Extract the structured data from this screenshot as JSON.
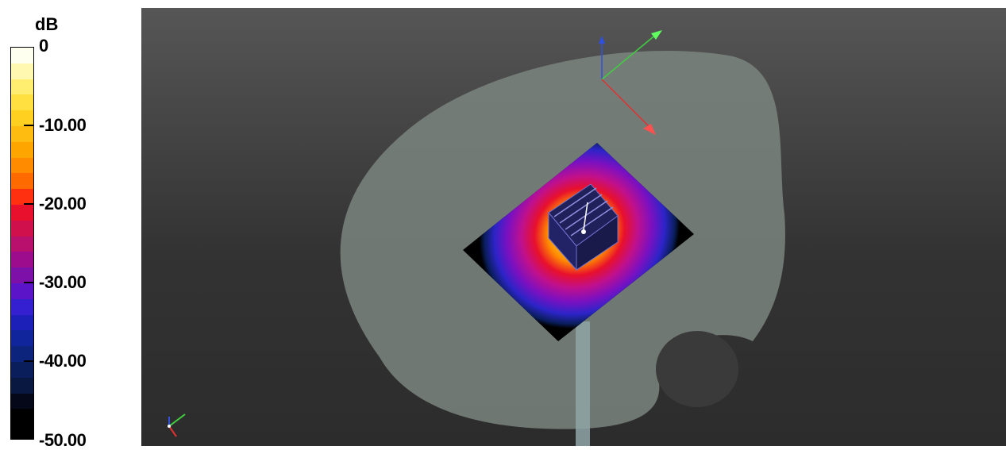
{
  "colorbar": {
    "unit": "dB",
    "ticks": [
      {
        "label": "0",
        "value": 0
      },
      {
        "label": "-10.00",
        "value": -10
      },
      {
        "label": "-20.00",
        "value": -20
      },
      {
        "label": "-30.00",
        "value": -30
      },
      {
        "label": "-40.00",
        "value": -40
      },
      {
        "label": "-50.00",
        "value": -50
      }
    ],
    "range": [
      -50,
      0
    ],
    "colors": [
      "#fffff0",
      "#fff8b0",
      "#ffee70",
      "#ffe040",
      "#ffd020",
      "#ffbc10",
      "#ffa500",
      "#ff8c00",
      "#ff6a00",
      "#ff3010",
      "#e8102c",
      "#d0104c",
      "#b8106c",
      "#9c0c8c",
      "#7c10a8",
      "#5c14c8",
      "#3420d0",
      "#1c20b8",
      "#10249c",
      "#0c247c",
      "#0a1e5c",
      "#081840",
      "#040818",
      "#000000",
      "#000000"
    ]
  },
  "viewport": {
    "background_top": "#565656",
    "background_bottom": "#2c2c2c",
    "head_color": "#7b8580",
    "stand_color": "#8fa4a6",
    "axis_colors": {
      "x": "#e03030",
      "y": "#40d040",
      "z": "#3050e0"
    }
  }
}
